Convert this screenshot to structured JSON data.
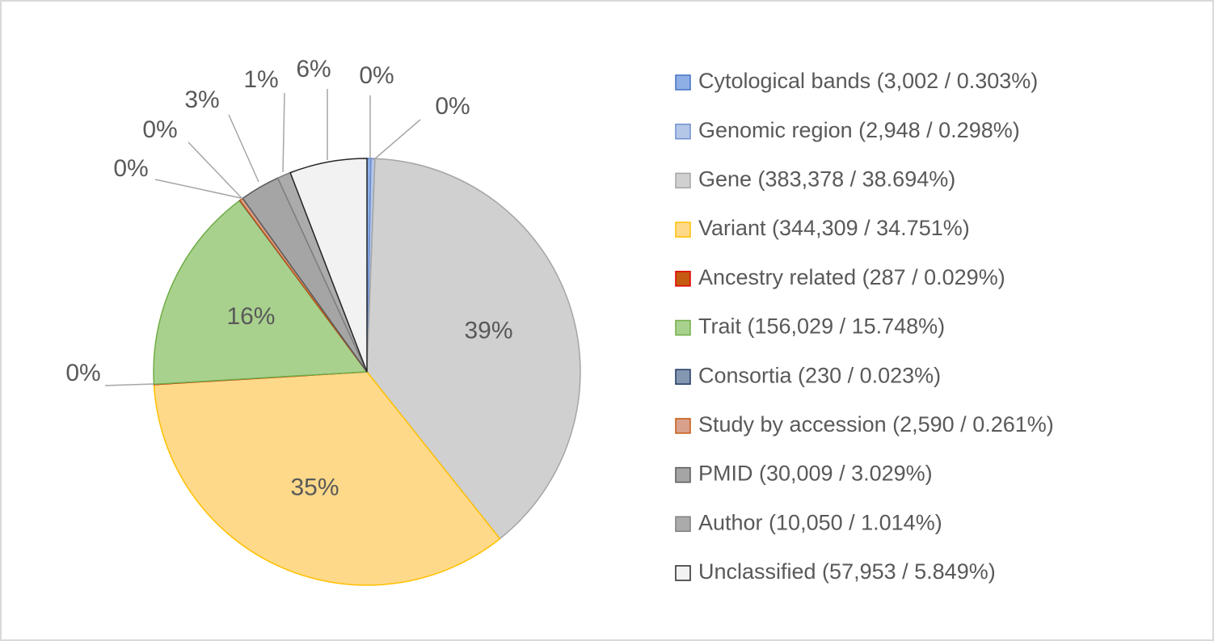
{
  "chart_data": {
    "type": "pie",
    "categories": [
      "Cytological bands (3,002 / 0.303%)",
      "Genomic region (2,948 / 0.298%)",
      "Gene (383,378 / 38.694%)",
      "Variant (344,309 / 34.751%)",
      "Ancestry related (287 / 0.029%)",
      "Trait (156,029 / 15.748%)",
      "Consortia (230 / 0.023%)",
      "Study by accession (2,590 / 0.261%)",
      "PMID (30,009 / 3.029%)",
      "Author (10,050 / 1.014%)",
      "Unclassified (57,953 / 5.849%)"
    ],
    "values": [
      0.303,
      0.298,
      38.694,
      34.751,
      0.029,
      15.748,
      0.023,
      0.261,
      3.029,
      1.014,
      5.849
    ],
    "value_labels": [
      "0%",
      "0%",
      "39%",
      "35%",
      "0%",
      "16%",
      "0%",
      "0%",
      "3%",
      "1%",
      "6%"
    ],
    "colors": [
      "#8eaee6",
      "#b4c7e7",
      "#d0d0d0",
      "#ffd98a",
      "#c55a11",
      "#a9d18e",
      "#8497b0",
      "#d9a08c",
      "#a5a5a5",
      "#ababab",
      "#f2f2f2"
    ],
    "border_colors": [
      "#4472c4",
      "#6f8fd0",
      "#a5a5a5",
      "#ffc000",
      "#e00000",
      "#70ad47",
      "#1f3864",
      "#c55a11",
      "#595959",
      "#7f7f7f",
      "#262626"
    ],
    "legend_position": "right"
  }
}
